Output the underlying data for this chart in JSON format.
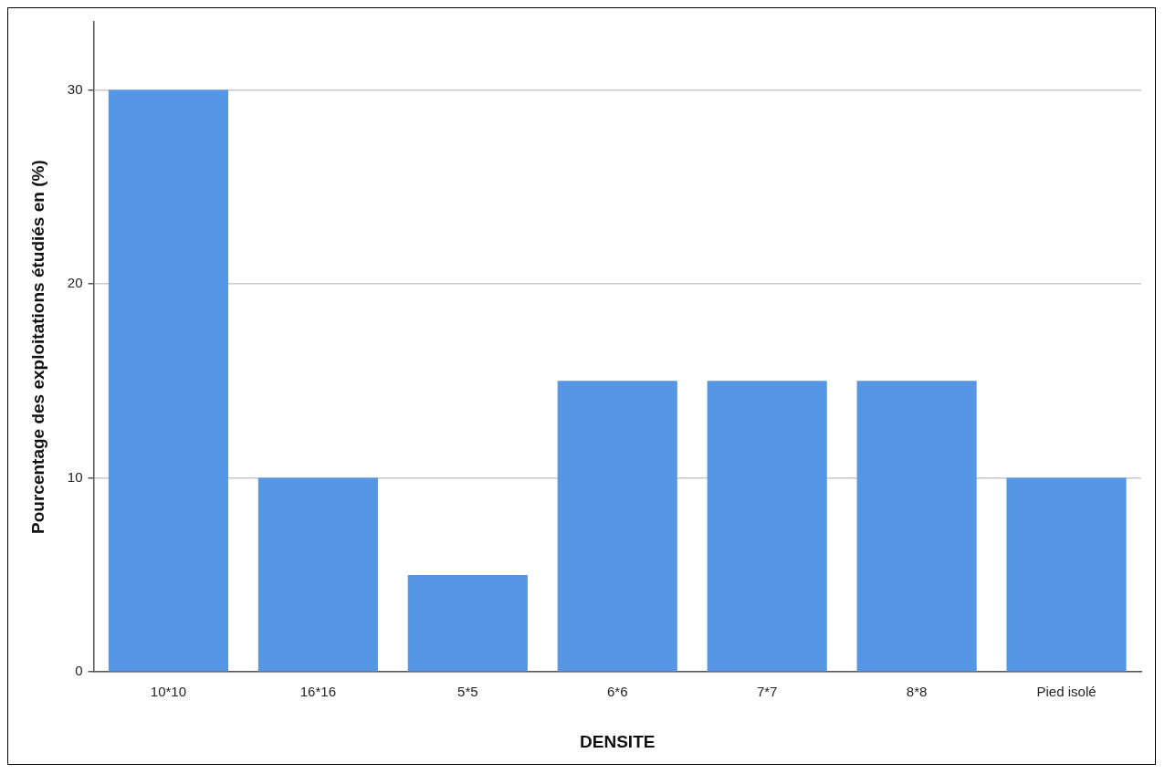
{
  "chart_data": {
    "type": "bar",
    "xlabel": "DENSITE",
    "ylabel": "Pourcentage des exploitations étudiés en (%)",
    "categories": [
      "10*10",
      "16*16",
      "5*5",
      "6*6",
      "7*7",
      "8*8",
      "Pied isolé"
    ],
    "values": [
      30,
      10,
      5,
      15,
      15,
      15,
      10
    ],
    "color": "#5596e5",
    "ylim": [
      0,
      33.5
    ],
    "yticks": [
      0,
      10,
      20,
      30
    ],
    "grid": "y",
    "legend": false
  }
}
